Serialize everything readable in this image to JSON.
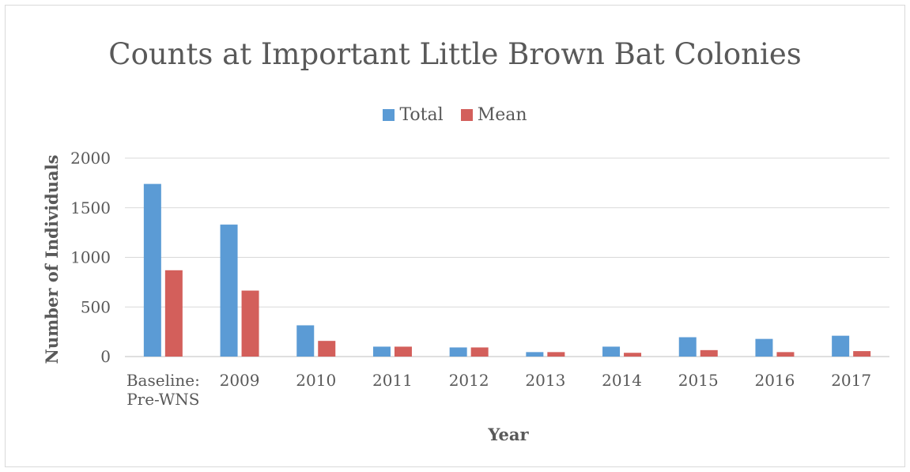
{
  "chart_data": {
    "type": "bar",
    "title": "Counts at Important Little Brown Bat Colonies",
    "xlabel": "Year",
    "ylabel": "Number of Individuals",
    "categories": [
      [
        "Baseline:",
        "Pre-WNS"
      ],
      [
        "2009"
      ],
      [
        "2010"
      ],
      [
        "2011"
      ],
      [
        "2012"
      ],
      [
        "2013"
      ],
      [
        "2014"
      ],
      [
        "2015"
      ],
      [
        "2016"
      ],
      [
        "2017"
      ]
    ],
    "series": [
      {
        "name": "Total",
        "color": "#5b9bd5",
        "values": [
          1740,
          1330,
          315,
          100,
          92,
          45,
          100,
          195,
          178,
          210
        ]
      },
      {
        "name": "Mean",
        "color": "#d35f5b",
        "values": [
          870,
          665,
          158,
          100,
          92,
          45,
          38,
          65,
          45,
          55
        ]
      }
    ],
    "ylim": [
      0,
      2000
    ],
    "yticks": [
      0,
      500,
      1000,
      1500,
      2000
    ],
    "grid": true,
    "legend": "top-center"
  }
}
